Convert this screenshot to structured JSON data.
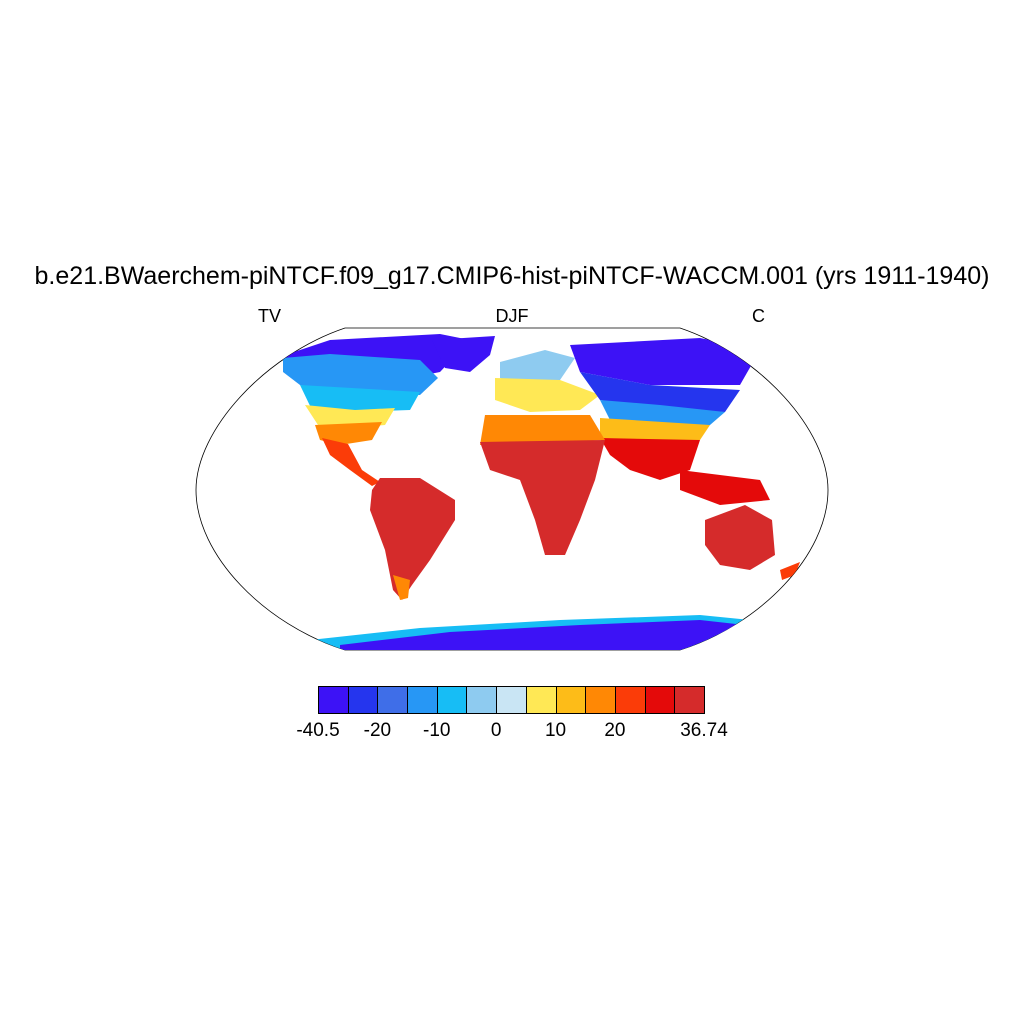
{
  "title": "b.e21.BWaerchem-piNTCF.f09_g17.CMIP6-hist-piNTCF-WACCM.001 (yrs 1911-1940)",
  "subtitle_left": "TV",
  "subtitle_center": "DJF",
  "subtitle_right": "C",
  "colorbar": {
    "colors": [
      "#3d12f6",
      "#2535ee",
      "#3f6ee8",
      "#2797f5",
      "#17bdf5",
      "#8ecbf0",
      "#c9e5f4",
      "#ffe855",
      "#fdbc18",
      "#ff8805",
      "#fb3c08",
      "#e40a0a",
      "#d52b2b"
    ],
    "tick_labels": [
      {
        "text": "-40.5",
        "boundary": 0
      },
      {
        "text": "-20",
        "boundary": 2
      },
      {
        "text": "-10",
        "boundary": 4
      },
      {
        "text": "0",
        "boundary": 6
      },
      {
        "text": "10",
        "boundary": 8
      },
      {
        "text": "20",
        "boundary": 10
      },
      {
        "text": "36.74",
        "boundary": 13
      }
    ],
    "min": -40.5,
    "max": 36.74
  }
}
